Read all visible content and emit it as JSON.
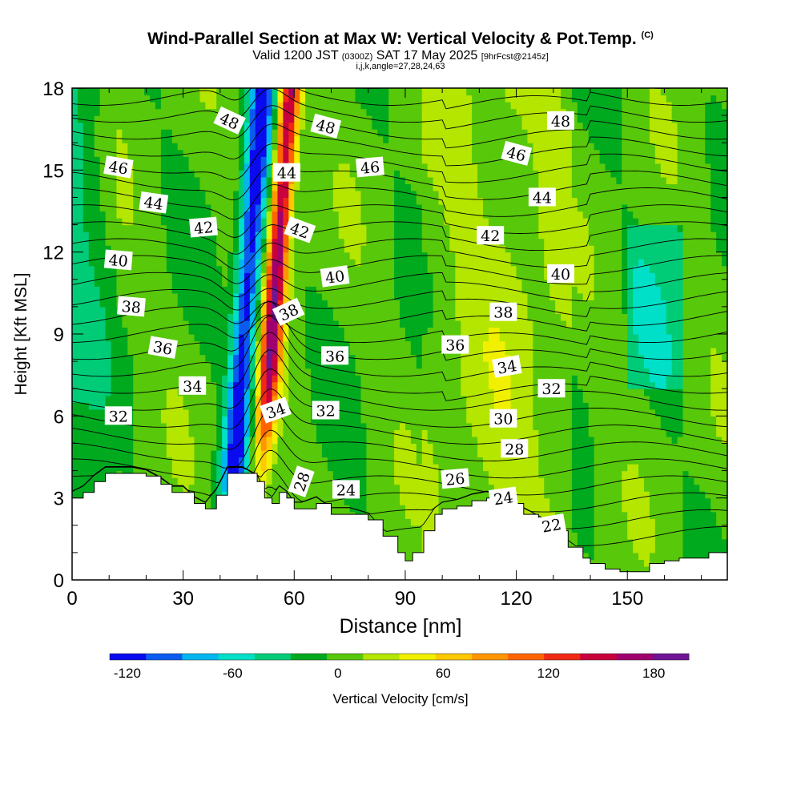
{
  "title": "Wind-Parallel Section at Max W: Vertical Velocity & Pot.Temp.",
  "title_mark": "(C)",
  "subtitle_main": "Valid 1200 JST",
  "subtitle_utc": "(0300Z)",
  "subtitle_date": "SAT 17 May 2025",
  "subtitle_fcst": "[9hrFcst@2145z]",
  "info": "i,j,k,angle=27,28,24,63",
  "chart_data": {
    "type": "heatmap",
    "title": "Wind-Parallel Section at Max W: Vertical Velocity & Pot.Temp.",
    "xlabel": "Distance [nm]",
    "ylabel": "Height [Kft MSL]",
    "xlim": [
      0,
      177
    ],
    "ylim": [
      0,
      18
    ],
    "xticks": [
      0,
      30,
      60,
      90,
      120,
      150
    ],
    "yticks": [
      0,
      3,
      6,
      9,
      12,
      15,
      18
    ],
    "colorbar": {
      "label": "Vertical Velocity [cm/s]",
      "ticks": [
        -120,
        -60,
        0,
        60,
        120,
        180
      ],
      "range": [
        -130,
        200
      ],
      "colors": [
        "#0a0aee",
        "#0a5cf0",
        "#00b6f0",
        "#00e0c8",
        "#00cc78",
        "#00aa1e",
        "#58c80a",
        "#b4e600",
        "#f0f000",
        "#ffc800",
        "#ff9600",
        "#ff6400",
        "#f02814",
        "#c8003c",
        "#a0006e",
        "#6e1494"
      ]
    },
    "updraft_core": {
      "x": [
        44,
        60
      ],
      "max_cm_s": 170
    },
    "downdraft_core": {
      "x": [
        36,
        52
      ],
      "min_cm_s": -125
    },
    "terrain_kft": {
      "x": [
        0,
        3,
        6,
        9,
        12,
        16,
        20,
        24,
        27,
        30,
        33,
        36,
        39,
        42,
        46,
        50,
        52,
        54,
        56,
        58,
        60,
        62,
        66,
        70,
        75,
        80,
        84,
        88,
        90,
        92,
        95,
        98,
        100,
        104,
        108,
        112,
        116,
        118,
        122,
        126,
        130,
        134,
        138,
        140,
        144,
        148,
        152,
        156,
        160,
        164,
        168,
        172,
        177
      ],
      "y": [
        3,
        3.2,
        3.6,
        3.9,
        3.9,
        3.9,
        3.8,
        3.5,
        3.2,
        3.2,
        2.8,
        2.6,
        3.1,
        3.9,
        3.9,
        3.6,
        3.0,
        2.8,
        3.2,
        3.0,
        2.6,
        2.6,
        2.8,
        2.4,
        2.4,
        2.2,
        1.6,
        1.0,
        0.7,
        1.0,
        1.8,
        2.4,
        2.6,
        2.7,
        2.9,
        3.0,
        2.9,
        2.8,
        2.4,
        2.1,
        1.8,
        1.2,
        0.8,
        0.6,
        0.4,
        0.3,
        0.3,
        0.6,
        0.7,
        0.8,
        0.8,
        1.0,
        1.0
      ]
    },
    "theta_contour_labels": [
      {
        "v": "48",
        "x": 42.5,
        "y": 16.8,
        "r": 25
      },
      {
        "v": "48",
        "x": 68.5,
        "y": 16.6,
        "r": 15
      },
      {
        "v": "48",
        "x": 132,
        "y": 16.8,
        "r": 0
      },
      {
        "v": "46",
        "x": 12.5,
        "y": 15.1,
        "r": 10
      },
      {
        "v": "46",
        "x": 80.5,
        "y": 15.1,
        "r": -5
      },
      {
        "v": "46",
        "x": 120,
        "y": 15.6,
        "r": 15
      },
      {
        "v": "44",
        "x": 22,
        "y": 13.8,
        "r": 8
      },
      {
        "v": "44",
        "x": 58,
        "y": 14.9,
        "r": 0
      },
      {
        "v": "44",
        "x": 127,
        "y": 14.0,
        "r": 0
      },
      {
        "v": "42",
        "x": 35.5,
        "y": 12.9,
        "r": -5
      },
      {
        "v": "42",
        "x": 61.5,
        "y": 12.8,
        "r": 20
      },
      {
        "v": "42",
        "x": 113,
        "y": 12.6,
        "r": 0
      },
      {
        "v": "40",
        "x": 12.5,
        "y": 11.7,
        "r": 5
      },
      {
        "v": "40",
        "x": 71,
        "y": 11.1,
        "r": -8
      },
      {
        "v": "40",
        "x": 132,
        "y": 11.2,
        "r": 0
      },
      {
        "v": "38",
        "x": 16,
        "y": 10.0,
        "r": 5
      },
      {
        "v": "38",
        "x": 58.5,
        "y": 9.8,
        "r": -25
      },
      {
        "v": "38",
        "x": 116.5,
        "y": 9.8,
        "r": 0
      },
      {
        "v": "36",
        "x": 24.5,
        "y": 8.5,
        "r": 10
      },
      {
        "v": "36",
        "x": 71,
        "y": 8.2,
        "r": 0
      },
      {
        "v": "36",
        "x": 103.5,
        "y": 8.6,
        "r": 0
      },
      {
        "v": "34",
        "x": 32.5,
        "y": 7.1,
        "r": 0
      },
      {
        "v": "34",
        "x": 55,
        "y": 6.2,
        "r": -20
      },
      {
        "v": "34",
        "x": 117.5,
        "y": 7.8,
        "r": -10
      },
      {
        "v": "32",
        "x": 12.5,
        "y": 6.0,
        "r": 0
      },
      {
        "v": "32",
        "x": 68.5,
        "y": 6.2,
        "r": 0
      },
      {
        "v": "32",
        "x": 129.5,
        "y": 7.0,
        "r": 0
      },
      {
        "v": "30",
        "x": 116.5,
        "y": 5.9,
        "r": 0
      },
      {
        "v": "28",
        "x": 62,
        "y": 3.6,
        "r": -70
      },
      {
        "v": "28",
        "x": 119.5,
        "y": 4.8,
        "r": 0
      },
      {
        "v": "26",
        "x": 103.5,
        "y": 3.7,
        "r": -5
      },
      {
        "v": "24",
        "x": 74,
        "y": 3.3,
        "r": 0
      },
      {
        "v": "24",
        "x": 116.5,
        "y": 3.0,
        "r": -8
      },
      {
        "v": "22",
        "x": 129.5,
        "y": 2.0,
        "r": -10
      }
    ]
  }
}
